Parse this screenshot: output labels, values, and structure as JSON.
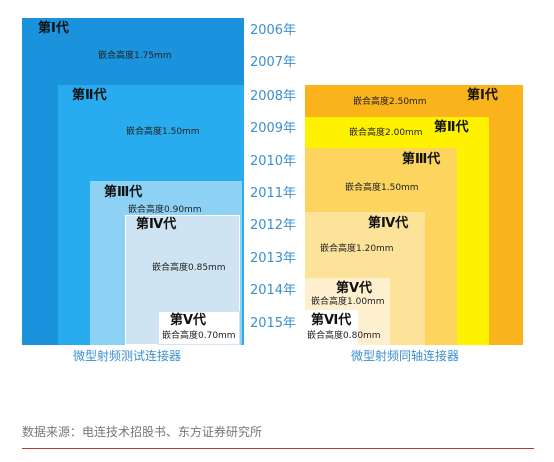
{
  "years": [
    "2006年",
    "2007年",
    "2008年",
    "2009年",
    "2010年",
    "2011年",
    "2012年",
    "2013年",
    "2014年",
    "2015年"
  ],
  "test_connectors": {
    "caption": "微型射频测试连接器",
    "generations": [
      {
        "gen": "第Ⅰ代",
        "height": "嵌合高度1.75mm"
      },
      {
        "gen": "第Ⅱ代",
        "height": "嵌合高度1.50mm"
      },
      {
        "gen": "第Ⅲ代",
        "height": "嵌合高度0.90mm"
      },
      {
        "gen": "第Ⅳ代",
        "height": "嵌合高度0.85mm"
      },
      {
        "gen": "第Ⅴ代",
        "height": "嵌合高度0.70mm"
      }
    ],
    "colors": [
      "#1a93dc",
      "#28abef",
      "#8dd2f5",
      "#cfe4f2",
      "#ffffff"
    ]
  },
  "coaxial_connectors": {
    "caption": "微型射频同轴连接器",
    "generations": [
      {
        "gen": "第Ⅰ代",
        "height": "嵌合高度2.50mm"
      },
      {
        "gen": "第Ⅱ代",
        "height": "嵌合高度2.00mm"
      },
      {
        "gen": "第Ⅲ代",
        "height": "嵌合高度1.50mm"
      },
      {
        "gen": "第Ⅳ代",
        "height": "嵌合高度1.20mm"
      },
      {
        "gen": "第Ⅴ代",
        "height": "嵌合高度1.00mm"
      },
      {
        "gen": "第Ⅵ代",
        "height": "嵌合高度0.80mm"
      }
    ],
    "colors": [
      "#fbb31b",
      "#fff200",
      "#fcd45e",
      "#fde39a",
      "#fef0cf",
      "#ffffff"
    ]
  },
  "footer": {
    "source": "数据来源：电连技术招股书、东方证券研究所",
    "rule_color": "#c0392b"
  }
}
